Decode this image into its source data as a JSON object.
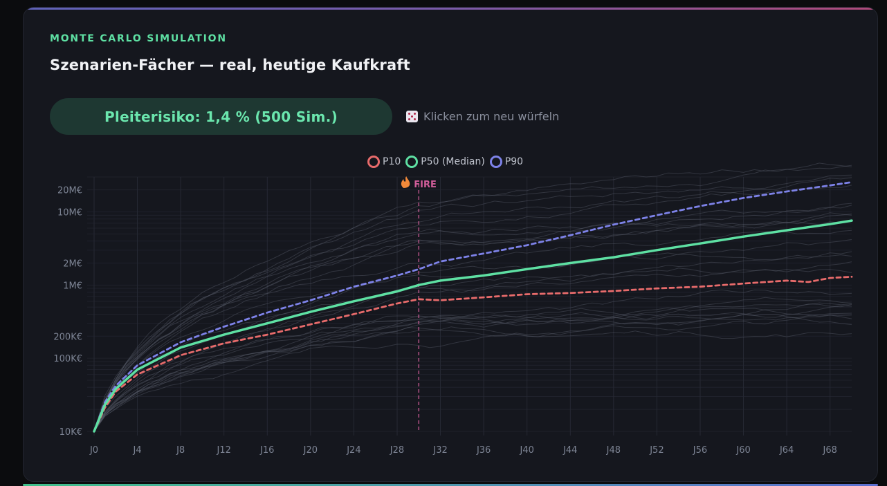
{
  "header": {
    "kicker": "MONTE CARLO SIMULATION",
    "title": "Szenarien-Fächer — real, heutige Kaufkraft"
  },
  "risk_pill": {
    "label": "Pleiterisiko: 1,4 % (500 Sim.)"
  },
  "reroll": {
    "icon": "dice-icon",
    "label": "Klicken zum neu würfeln"
  },
  "colors": {
    "p10": "#e86b6b",
    "p50": "#5ee0a3",
    "p90": "#7d82e8",
    "fire": "#d25e9a",
    "grid": "#262934",
    "tick": "#7d8494",
    "sim": "#565a68"
  },
  "chart_data": {
    "type": "line",
    "y_scale": "log",
    "ylim": [
      10000,
      30000000
    ],
    "x_ticks": [
      "J0",
      "J4",
      "J8",
      "J12",
      "J16",
      "J20",
      "J24",
      "J28",
      "J32",
      "J36",
      "J40",
      "J44",
      "J48",
      "J52",
      "J56",
      "J60",
      "J64",
      "J68"
    ],
    "y_ticks": [
      {
        "value": 10000,
        "label": "10K€"
      },
      {
        "value": 100000,
        "label": "100K€"
      },
      {
        "value": 200000,
        "label": "200K€"
      },
      {
        "value": 1000000,
        "label": "1M€"
      },
      {
        "value": 2000000,
        "label": "2M€"
      },
      {
        "value": 10000000,
        "label": "10M€"
      },
      {
        "value": 20000000,
        "label": "20M€"
      }
    ],
    "grid": true,
    "legend_position": "top-center",
    "annotation": {
      "label": "FIRE",
      "icon": "fire-icon",
      "x": 30
    },
    "series": [
      {
        "name": "P10",
        "style": "dashed",
        "x": [
          0,
          1,
          2,
          4,
          8,
          12,
          16,
          20,
          24,
          28,
          30,
          32,
          36,
          40,
          44,
          48,
          52,
          56,
          60,
          64,
          66,
          68,
          70
        ],
        "values": [
          10000,
          21000,
          35000,
          60000,
          110000,
          160000,
          210000,
          290000,
          400000,
          560000,
          640000,
          620000,
          680000,
          750000,
          780000,
          830000,
          900000,
          950000,
          1050000,
          1150000,
          1100000,
          1250000,
          1300000
        ]
      },
      {
        "name": "P50 (Median)",
        "style": "solid",
        "x": [
          0,
          1,
          2,
          4,
          8,
          12,
          16,
          20,
          24,
          28,
          30,
          32,
          36,
          40,
          44,
          48,
          52,
          56,
          60,
          64,
          68,
          70
        ],
        "values": [
          10000,
          23000,
          38000,
          70000,
          140000,
          210000,
          300000,
          430000,
          600000,
          820000,
          1000000,
          1150000,
          1350000,
          1650000,
          2000000,
          2400000,
          3000000,
          3700000,
          4600000,
          5600000,
          6800000,
          7600000
        ]
      },
      {
        "name": "P90",
        "style": "dashed",
        "x": [
          0,
          1,
          2,
          4,
          8,
          12,
          16,
          20,
          24,
          28,
          30,
          32,
          36,
          40,
          44,
          48,
          52,
          56,
          60,
          64,
          68,
          70
        ],
        "values": [
          10000,
          25000,
          42000,
          80000,
          165000,
          270000,
          420000,
          620000,
          950000,
          1350000,
          1650000,
          2100000,
          2700000,
          3500000,
          4800000,
          6700000,
          9000000,
          12000000,
          15500000,
          19000000,
          23000000,
          25500000
        ]
      }
    ]
  }
}
